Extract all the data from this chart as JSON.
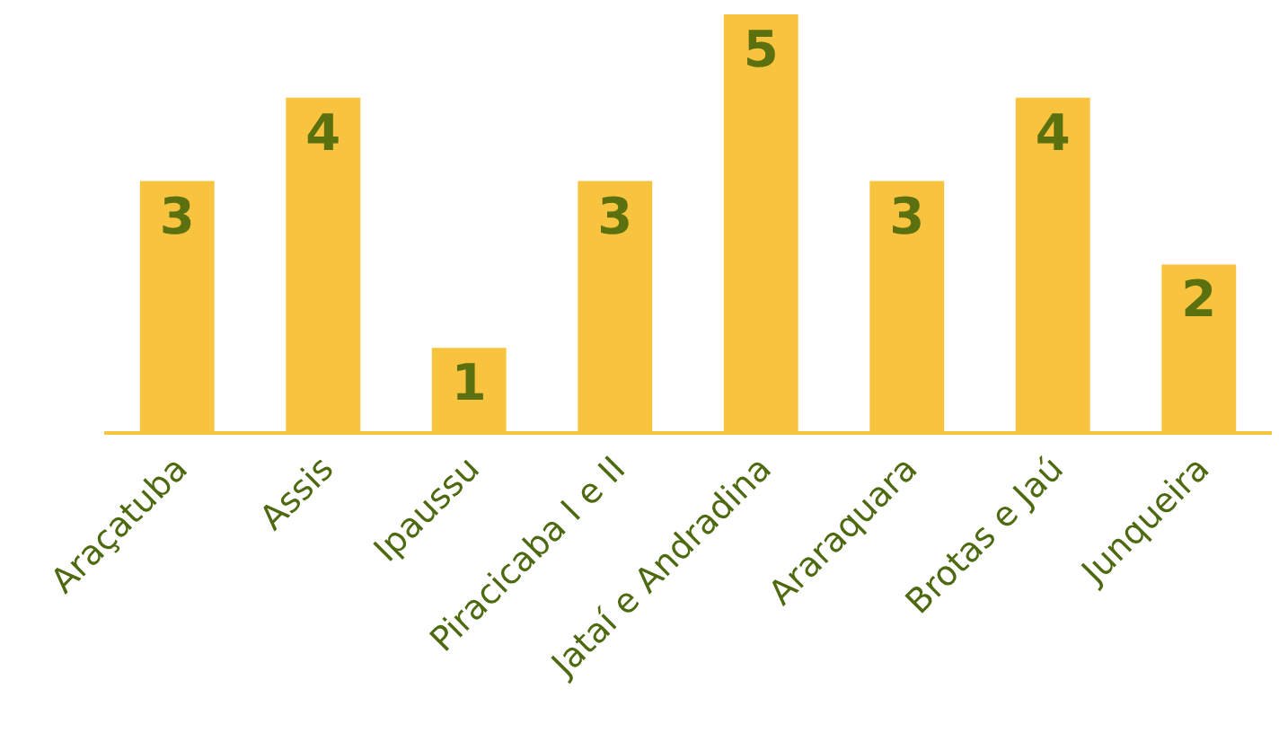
{
  "chart_data": {
    "type": "bar",
    "categories": [
      "Araçatuba",
      "Assis",
      "Ipaussu",
      "Piracicaba I e II",
      "Jataí e Andradina",
      "Araraquara",
      "Brotas e Jaú",
      "Junqueira"
    ],
    "values": [
      3,
      4,
      1,
      3,
      5,
      3,
      4,
      2
    ],
    "color": "#f8c33f",
    "data_labels": true
  }
}
